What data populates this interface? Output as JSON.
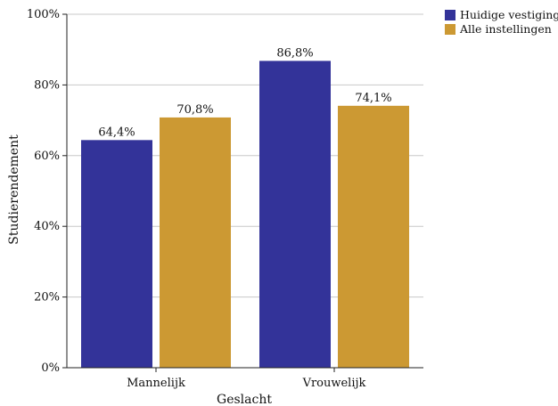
{
  "chart_data": {
    "type": "bar",
    "categories": [
      "Mannelijk",
      "Vrouwelijk"
    ],
    "series": [
      {
        "name": "Huidige vestiging",
        "values": [
          64.4,
          86.8
        ],
        "labels": [
          "64,4%",
          "86,8%"
        ],
        "color": "#333399"
      },
      {
        "name": "Alle instellingen",
        "values": [
          70.8,
          74.1
        ],
        "labels": [
          "70,8%",
          "74,1%"
        ],
        "color": "#cc9933"
      }
    ],
    "xlabel": "Geslacht",
    "ylabel": "Studierendement",
    "ylim": [
      0,
      100
    ],
    "yticks": [
      0,
      20,
      40,
      60,
      80,
      100
    ],
    "ytick_labels": [
      "0%",
      "20%",
      "40%",
      "60%",
      "80%",
      "100%"
    ],
    "grid": true,
    "legend_position": "top-right"
  }
}
